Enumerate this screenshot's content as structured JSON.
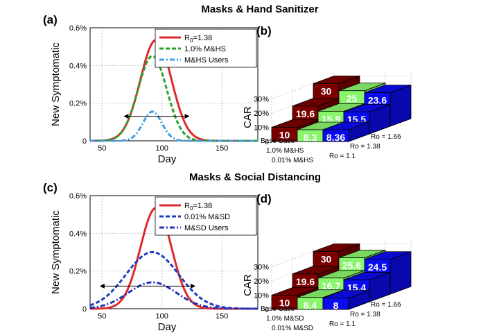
{
  "rows": [
    {
      "title": "Masks & Hand Sanitizer",
      "line": {
        "label": "(a)",
        "xlabel": "Day",
        "ylabel": "New Symptomatic",
        "xticks": [
          50,
          100,
          150
        ],
        "yticks": [
          "0",
          "0.2%",
          "0.4%",
          "0.6%"
        ],
        "xlim": [
          40,
          180
        ],
        "ylim": [
          0,
          0.6
        ],
        "legend": [
          {
            "prefix": "R",
            "sub": "0",
            "rest": "=1.38"
          },
          {
            "prefix": "1.0% M&HS",
            "sub": "",
            "rest": ""
          },
          {
            "prefix": "M&HS Users",
            "sub": "",
            "rest": ""
          }
        ],
        "series": [
          {
            "color": "#e0282c",
            "style": "solid",
            "peak": 0.535,
            "center": 95,
            "sigma": 13
          },
          {
            "color": "#2ca02c",
            "style": "dash",
            "peak": 0.45,
            "center": 92,
            "sigma": 12
          },
          {
            "color": "#3d9ee6",
            "style": "dashdot",
            "peak": 0.155,
            "center": 92,
            "sigma": 8
          }
        ],
        "arrow": {
          "x0": 68,
          "x1": 123,
          "y": 0.13
        }
      },
      "bar": {
        "label": "(b)",
        "zlabel": "CAR",
        "zticks": [
          "0",
          "10%",
          "20%",
          "30%"
        ],
        "cats": [
          "Base Case",
          "1.0% M&HS",
          "0.01% M&HS"
        ],
        "ros": [
          "Ro = 1.1",
          "Ro = 1.38",
          "Ro = 1.66"
        ],
        "values": [
          [
            10,
            19.6,
            30
          ],
          [
            8.3,
            15.9,
            25
          ],
          [
            8.36,
            15.5,
            23.6
          ]
        ]
      }
    },
    {
      "title": "Masks & Social Distancing",
      "line": {
        "label": "(c)",
        "xlabel": "Day",
        "ylabel": "New Symptomatic",
        "xticks": [
          50,
          100,
          150
        ],
        "yticks": [
          "0",
          "0.2%",
          "0.4%",
          "0.6%"
        ],
        "xlim": [
          40,
          180
        ],
        "ylim": [
          0,
          0.6
        ],
        "legend": [
          {
            "prefix": "R",
            "sub": "0",
            "rest": "=1.38"
          },
          {
            "prefix": "0.01% M&SD",
            "sub": "",
            "rest": ""
          },
          {
            "prefix": "M&SD Users",
            "sub": "",
            "rest": ""
          }
        ],
        "series": [
          {
            "color": "#e0282c",
            "style": "solid",
            "peak": 0.535,
            "center": 95,
            "sigma": 13
          },
          {
            "color": "#1f3fbf",
            "style": "dash",
            "peak": 0.3,
            "center": 92,
            "sigma": 22
          },
          {
            "color": "#2233bb",
            "style": "dashdot",
            "peak": 0.14,
            "center": 92,
            "sigma": 20
          }
        ],
        "arrow": {
          "x0": 48,
          "x1": 128,
          "y": 0.12
        }
      },
      "bar": {
        "label": "(d)",
        "zlabel": "CAR",
        "zticks": [
          "0",
          "10%",
          "20%",
          "30%"
        ],
        "cats": [
          "Base Case",
          "1.0% M&SD",
          "0.01% M&SD"
        ],
        "ros": [
          "Ro = 1.1",
          "Ro = 1.38",
          "Ro = 1.66"
        ],
        "values": [
          [
            10,
            19.6,
            30
          ],
          [
            8.4,
            16.7,
            25.6
          ],
          [
            8,
            15.4,
            24.5
          ]
        ]
      }
    }
  ],
  "colors": {
    "base": "#7a0000",
    "mid": "#88f56c",
    "low": "#0b0bf0"
  }
}
